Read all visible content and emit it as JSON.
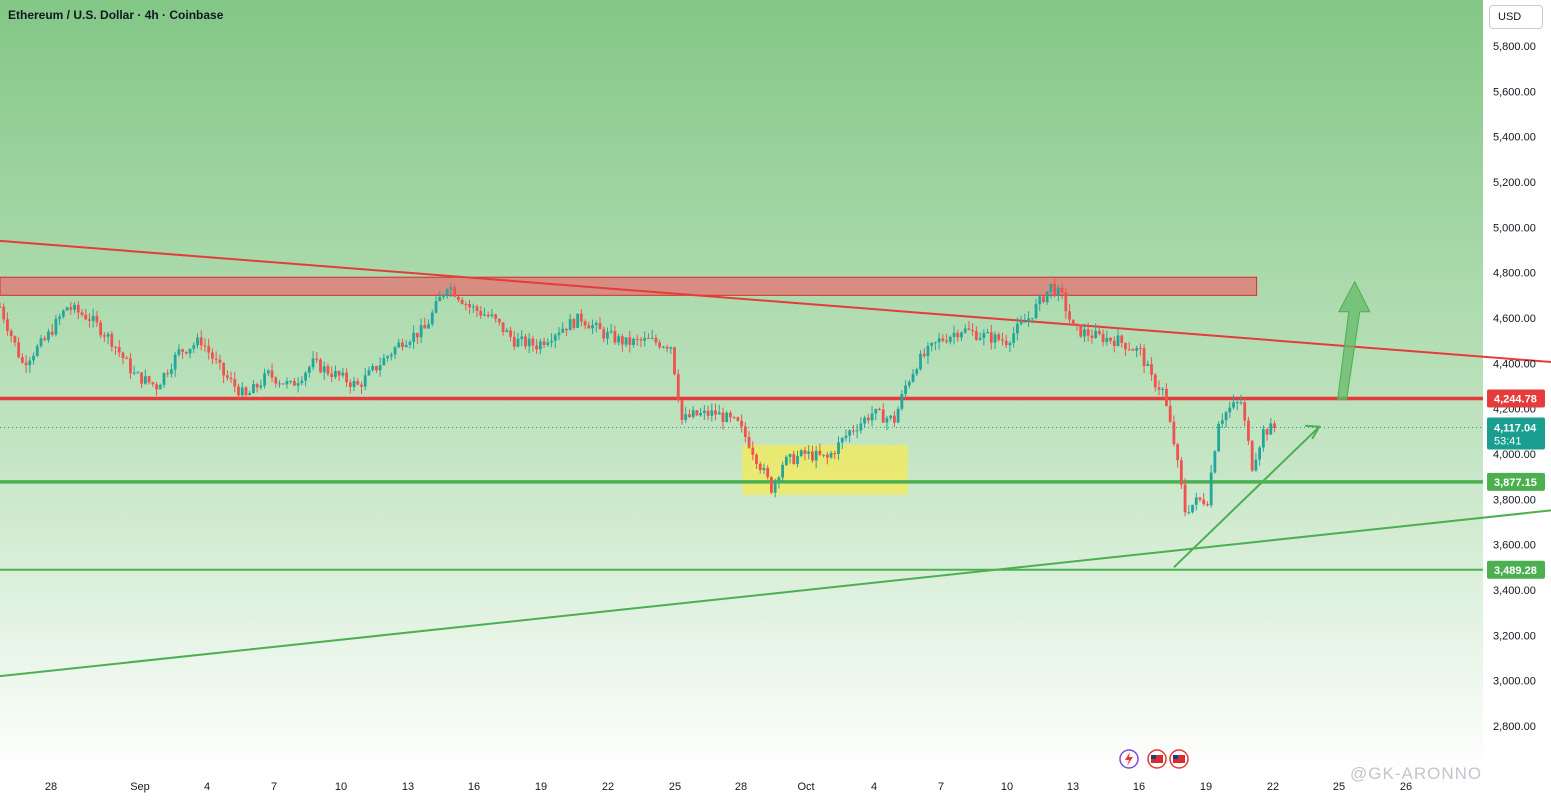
{
  "header": {
    "title": "Ethereum / U.S. Dollar · 4h · Coinbase",
    "currency": "USD"
  },
  "watermark": "@GK-ARONNO",
  "colors": {
    "bg_top": "#83c786",
    "bg_bottom": "#ffffff",
    "up": "#26a69a",
    "down": "#ef5350",
    "resistance": "#e63b3b",
    "support": "#4caf50",
    "last_price": "#1a9e8f",
    "zone_red": "#e57373",
    "zone_yellow": "#ffeb3b"
  },
  "chart_data": {
    "type": "candlestick",
    "symbol": "Ethereum / U.S. Dollar",
    "timeframe": "4h",
    "exchange": "Coinbase",
    "x_axis": {
      "ticks": [
        "28",
        "Sep",
        "4",
        "7",
        "10",
        "13",
        "16",
        "19",
        "22",
        "25",
        "28",
        "Oct",
        "4",
        "7",
        "10",
        "13",
        "16",
        "19",
        "22",
        "25",
        "26"
      ]
    },
    "y_axis": {
      "ylim": [
        2700,
        5900
      ],
      "ticks": [
        "5,800.00",
        "5,600.00",
        "5,400.00",
        "5,200.00",
        "5,000.00",
        "4,800.00",
        "4,600.00",
        "4,400.00",
        "4,200.00",
        "4,000.00",
        "3,800.00",
        "3,600.00",
        "3,400.00",
        "3,200.00",
        "3,000.00",
        "2,800.00"
      ]
    },
    "price_path": [
      [
        0,
        4650
      ],
      [
        1,
        4400
      ],
      [
        2,
        4500
      ],
      [
        3,
        4650
      ],
      [
        4,
        4600
      ],
      [
        5,
        4500
      ],
      [
        6,
        4350
      ],
      [
        7,
        4300
      ],
      [
        8,
        4450
      ],
      [
        9,
        4500
      ],
      [
        10,
        4350
      ],
      [
        11,
        4250
      ],
      [
        12,
        4350
      ],
      [
        13,
        4300
      ],
      [
        14,
        4400
      ],
      [
        15,
        4350
      ],
      [
        16,
        4300
      ],
      [
        17,
        4400
      ],
      [
        18,
        4500
      ],
      [
        19,
        4550
      ],
      [
        20,
        4750
      ],
      [
        21,
        4650
      ],
      [
        22,
        4600
      ],
      [
        23,
        4500
      ],
      [
        24,
        4480
      ],
      [
        25,
        4550
      ],
      [
        26,
        4600
      ],
      [
        27,
        4530
      ],
      [
        28,
        4490
      ],
      [
        29,
        4500
      ],
      [
        30,
        4480
      ],
      [
        30.5,
        4150
      ],
      [
        31,
        4170
      ],
      [
        32,
        4180
      ],
      [
        33,
        4130
      ],
      [
        33.5,
        4050
      ],
      [
        34,
        3950
      ],
      [
        34.5,
        3850
      ],
      [
        35,
        3960
      ],
      [
        36,
        4000
      ],
      [
        37,
        3980
      ],
      [
        38,
        4100
      ],
      [
        39,
        4180
      ],
      [
        40,
        4150
      ],
      [
        40.5,
        4300
      ],
      [
        41,
        4400
      ],
      [
        42,
        4500
      ],
      [
        43,
        4550
      ],
      [
        44,
        4520
      ],
      [
        45,
        4500
      ],
      [
        46,
        4600
      ],
      [
        47,
        4740
      ],
      [
        47.5,
        4690
      ],
      [
        48,
        4550
      ],
      [
        49,
        4520
      ],
      [
        50,
        4500
      ],
      [
        51,
        4450
      ],
      [
        51.5,
        4330
      ],
      [
        52,
        4280
      ],
      [
        52.5,
        4050
      ],
      [
        53,
        3750
      ],
      [
        53.5,
        3790
      ],
      [
        54,
        3800
      ],
      [
        54.5,
        4150
      ],
      [
        55,
        4200
      ],
      [
        55.5,
        4230
      ],
      [
        56,
        3950
      ],
      [
        56.5,
        4100
      ],
      [
        57,
        4117
      ]
    ],
    "levels": [
      {
        "price": 4244.78,
        "label": "4,244.78",
        "role": "resistance"
      },
      {
        "price": 3877.15,
        "label": "3,877.15",
        "role": "support"
      },
      {
        "price": 3489.28,
        "label": "3,489.28",
        "role": "support"
      }
    ],
    "last_price": {
      "price": 4117.04,
      "label": "4,117.04",
      "countdown": "53:41"
    },
    "zones": [
      {
        "kind": "resistance",
        "x0": 0,
        "x1": 56.2,
        "y0": 4700,
        "y1": 4780
      },
      {
        "kind": "accumulation",
        "x0": 33.2,
        "x1": 40.6,
        "y0": 3820,
        "y1": 4040
      }
    ],
    "trendlines": [
      {
        "kind": "descending",
        "from": [
          0,
          4940
        ],
        "to": [
          74,
          4370
        ]
      },
      {
        "kind": "ascending",
        "from": [
          0,
          3020
        ],
        "to": [
          74,
          3800
        ]
      },
      {
        "kind": "short-term",
        "from": [
          52.5,
          3500
        ],
        "to": [
          59,
          4120
        ]
      }
    ],
    "projection_arrow": {
      "from": [
        60,
        4240
      ],
      "to": [
        60.5,
        4760
      ]
    }
  }
}
